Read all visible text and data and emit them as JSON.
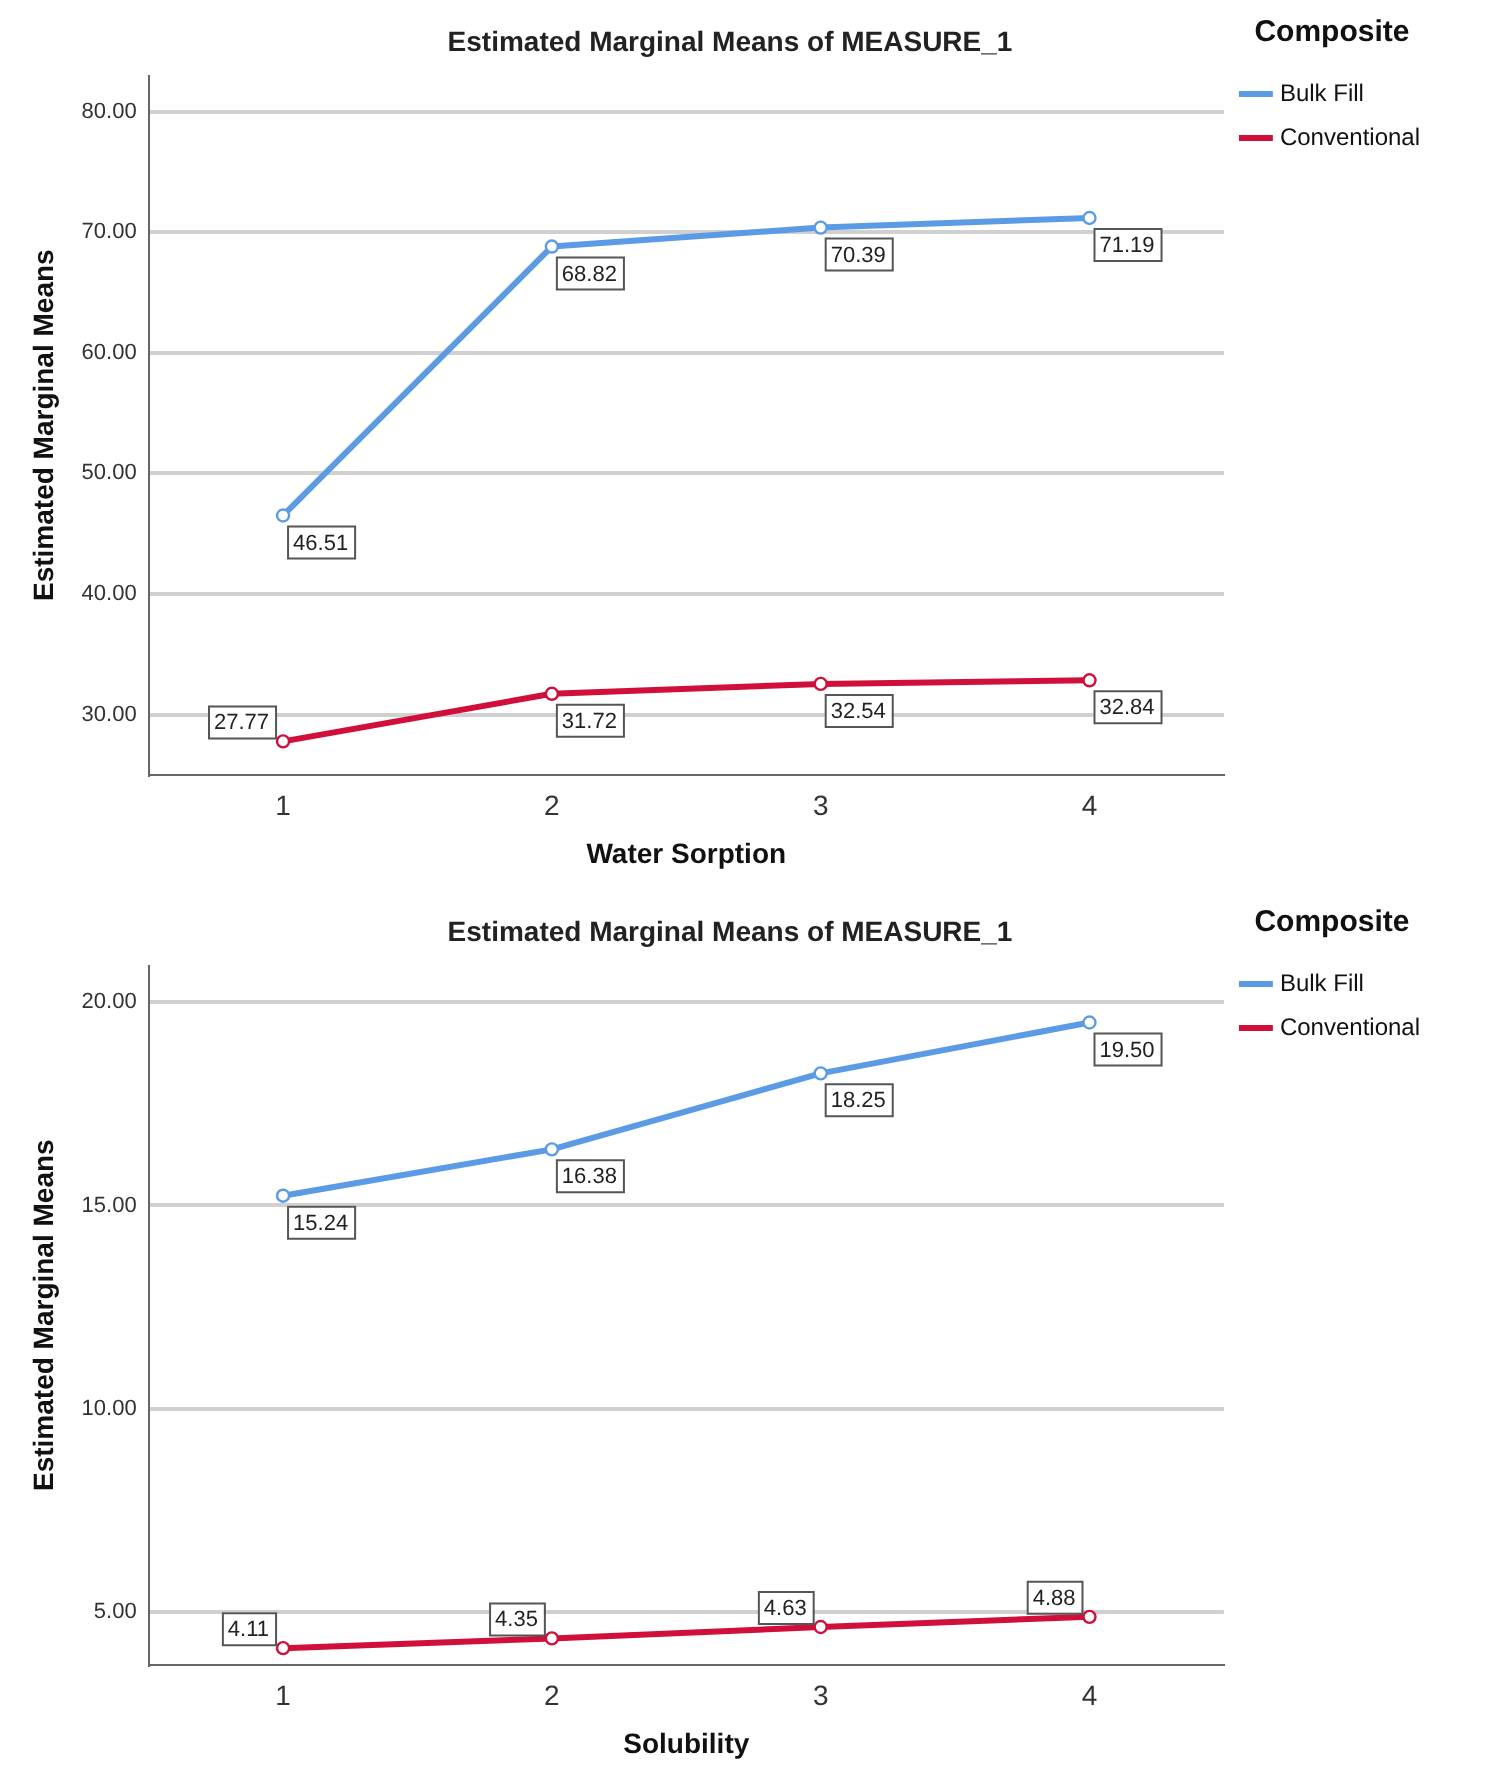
{
  "chart_data": [
    {
      "type": "line",
      "title": "Estimated Marginal Means of MEASURE_1",
      "xlabel": "Water Sorption",
      "ylabel": "Estimated Marginal Means",
      "legend_title": "Composite",
      "categories": [
        "1",
        "2",
        "3",
        "4"
      ],
      "series": [
        {
          "name": "Bulk Fill",
          "color": "#5b9be6",
          "values": [
            46.51,
            68.82,
            70.39,
            71.19
          ],
          "value_labels": [
            "46.51",
            "68.82",
            "70.39",
            "71.19"
          ]
        },
        {
          "name": "Conventional",
          "color": "#d0103a",
          "values": [
            27.77,
            31.72,
            32.54,
            32.84
          ],
          "value_labels": [
            "27.77",
            "31.72",
            "32.54",
            "32.84"
          ]
        }
      ],
      "ylim": [
        25,
        83
      ],
      "yticks": [
        {
          "value": 30,
          "label": "30.00"
        },
        {
          "value": 40,
          "label": "40.00"
        },
        {
          "value": 50,
          "label": "50.00"
        },
        {
          "value": 60,
          "label": "60.00"
        },
        {
          "value": 70,
          "label": "70.00"
        },
        {
          "value": 80,
          "label": "80.00"
        }
      ],
      "grid": "y",
      "legend": "top right",
      "marker": "circle",
      "line_style": "solid"
    },
    {
      "type": "line",
      "title": "Estimated Marginal Means of MEASURE_1",
      "xlabel": "Solubility",
      "ylabel": "Estimated Marginal Means",
      "legend_title": "Composite",
      "categories": [
        "1",
        "2",
        "3",
        "4"
      ],
      "series": [
        {
          "name": "Bulk Fill",
          "color": "#5b9be6",
          "values": [
            15.24,
            16.38,
            18.25,
            19.5
          ],
          "value_labels": [
            "15.24",
            "16.38",
            "18.25",
            "19.50"
          ]
        },
        {
          "name": "Conventional",
          "color": "#d0103a",
          "values": [
            4.11,
            4.35,
            4.63,
            4.88
          ],
          "value_labels": [
            "4.11",
            "4.35",
            "4.63",
            "4.88"
          ]
        }
      ],
      "ylim": [
        3.7,
        20.9
      ],
      "yticks": [
        {
          "value": 5,
          "label": "5.00"
        },
        {
          "value": 10,
          "label": "10.00"
        },
        {
          "value": 15,
          "label": "15.00"
        },
        {
          "value": 20,
          "label": "20.00"
        }
      ],
      "grid": "y",
      "legend": "top right",
      "marker": "circle",
      "line_style": "solid"
    }
  ]
}
